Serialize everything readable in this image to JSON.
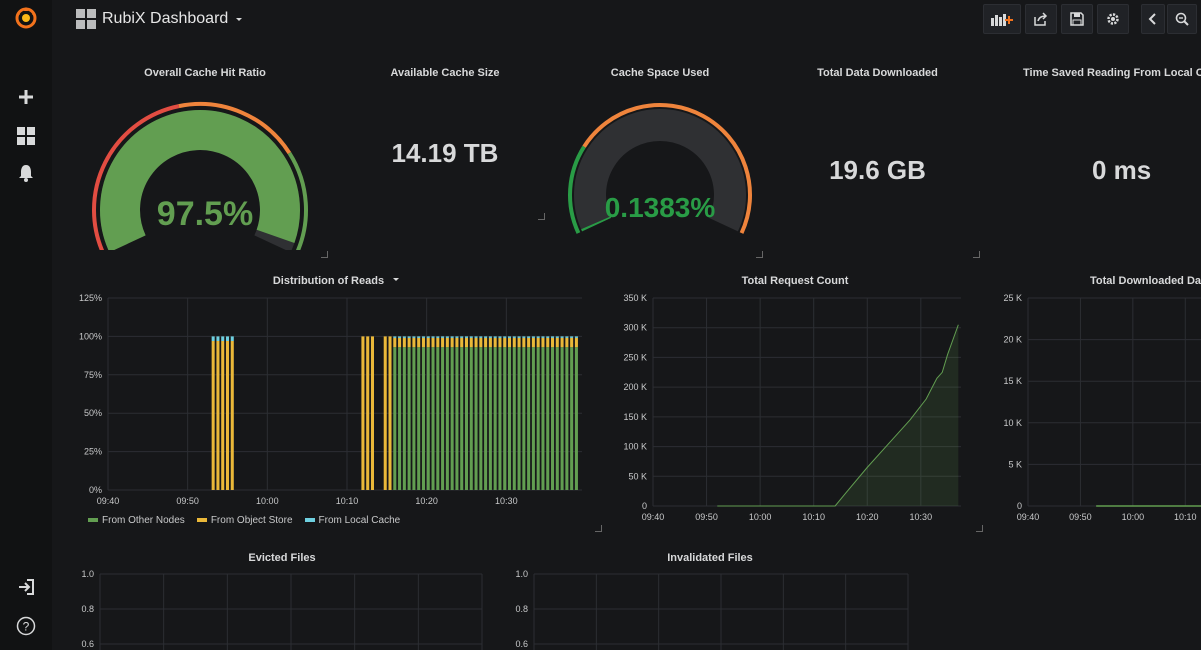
{
  "app": {
    "dashboard_title": "RubiX Dashboard"
  },
  "icons": {
    "logo": "grafana-logo-icon",
    "add": "plus-icon",
    "dashboards": "grid-icon",
    "alerts": "bell-icon",
    "signin": "sign-in-icon",
    "help": "help-icon",
    "add_panel": "add-panel-icon",
    "share": "share-icon",
    "save": "save-icon",
    "settings": "gear-icon",
    "back": "chevron-left-icon",
    "zoom": "zoom-out-icon"
  },
  "colors": {
    "green": "#629e51",
    "orange": "#eab839",
    "cyan": "#6ed0e0",
    "red": "#e24d42",
    "gauge_orange": "#ef843c",
    "stat_green": "#299c46"
  },
  "stats": {
    "cache_hit": {
      "title": "Overall Cache Hit Ratio",
      "value": "97.5%",
      "fraction": 0.975
    },
    "available": {
      "title": "Available Cache Size",
      "value": "14.19 TB"
    },
    "space_used": {
      "title": "Cache Space Used",
      "value": "0.1383%",
      "fraction": 0.001383
    },
    "downloaded": {
      "title": "Total Data Downloaded",
      "value": "19.6 GB"
    },
    "time_saved": {
      "title": "Time Saved Reading From Local Ca",
      "value": "0 ms"
    }
  },
  "chart_data": [
    {
      "type": "bar",
      "title": "Distribution of Reads",
      "y_ticks": [
        "0%",
        "25%",
        "50%",
        "75%",
        "100%",
        "125%"
      ],
      "ylim": [
        0,
        125
      ],
      "x_ticks": [
        "09:40",
        "09:50",
        "10:00",
        "10:10",
        "10:20",
        "10:30"
      ],
      "x_tick_minutes": [
        0,
        10,
        20,
        30,
        40,
        50
      ],
      "xlim_minutes": [
        0,
        59.5
      ],
      "legend": [
        "From Other Nodes",
        "From Object Store",
        "From Local Cache"
      ],
      "groups": [
        {
          "start": 13.2,
          "step": 0.6,
          "count": 5,
          "other": 0,
          "object": 97,
          "local": 3
        },
        {
          "start": 32.0,
          "step": 0.6,
          "count": 3,
          "other": 0,
          "object": 100,
          "local": 0
        },
        {
          "start": 34.8,
          "step": 0.6,
          "count": 2,
          "other": 0,
          "object": 100,
          "local": 0
        },
        {
          "start": 36.0,
          "step": 0.6,
          "count": 39,
          "other": 93,
          "object": 6,
          "local": 1
        }
      ]
    },
    {
      "type": "area",
      "title": "Total Request Count",
      "y_ticks": [
        "0",
        "50 K",
        "100 K",
        "150 K",
        "200 K",
        "250 K",
        "300 K",
        "350 K"
      ],
      "ylim": [
        0,
        350000
      ],
      "x_ticks": [
        "09:40",
        "09:50",
        "10:00",
        "10:10",
        "10:20",
        "10:30"
      ],
      "x_tick_minutes": [
        0,
        10,
        20,
        30,
        40,
        50
      ],
      "xlim_minutes": [
        0,
        57.5
      ],
      "x_minutes": [
        12,
        20,
        30,
        34,
        36,
        40,
        44,
        48,
        51,
        53,
        54,
        55,
        57
      ],
      "values": [
        0,
        0,
        0,
        0,
        22000,
        65000,
        105000,
        145000,
        180000,
        215000,
        225000,
        255000,
        305000
      ]
    },
    {
      "type": "line",
      "title": "Total Downloaded Dat",
      "y_ticks": [
        "0",
        "5 K",
        "10 K",
        "15 K",
        "20 K",
        "25 K"
      ],
      "ylim": [
        0,
        25000
      ],
      "x_ticks": [
        "09:40",
        "09:50",
        "10:00",
        "10:10"
      ],
      "x_tick_minutes": [
        0,
        10,
        20,
        30
      ],
      "xlim_minutes": [
        0,
        33
      ],
      "x_minutes": [
        13,
        33
      ],
      "values": [
        0,
        0
      ]
    },
    {
      "type": "line",
      "title": "Evicted Files",
      "y_ticks": [
        "0.6",
        "0.8",
        "1.0"
      ],
      "y_tick_values": [
        0.6,
        0.8,
        1.0
      ]
    },
    {
      "type": "line",
      "title": "Invalidated Files",
      "y_ticks": [
        "0.6",
        "0.8",
        "1.0"
      ],
      "y_tick_values": [
        0.6,
        0.8,
        1.0
      ]
    }
  ]
}
